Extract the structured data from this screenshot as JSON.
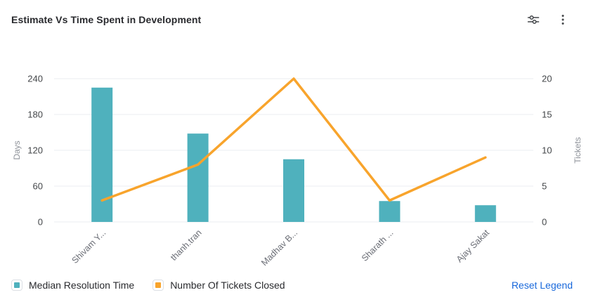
{
  "header": {
    "title": "Estimate Vs Time Spent in Development",
    "icons": [
      {
        "name": "filter-sliders-icon"
      },
      {
        "name": "kebab-menu-icon"
      }
    ]
  },
  "chart_data": {
    "type": "combo-bar-line",
    "categories": [
      "Shivam Y...",
      "thanh.tran",
      "Madhav B...",
      "Sharath ...",
      "Ajay Sakat"
    ],
    "series": [
      {
        "name": "Median Resolution Time",
        "type": "bar",
        "axis": "left",
        "color": "#4FB1BD",
        "values": [
          225,
          148,
          105,
          35,
          28
        ]
      },
      {
        "name": "Number Of Tickets Closed",
        "type": "line",
        "axis": "right",
        "color": "#F8A42C",
        "values": [
          3,
          8,
          20,
          3,
          9
        ]
      }
    ],
    "left_axis": {
      "label": "Days",
      "ticks": [
        0,
        60,
        120,
        180,
        240
      ],
      "min": 0,
      "max": 240
    },
    "right_axis": {
      "label": "Tickets",
      "ticks": [
        0,
        5,
        10,
        15,
        20
      ],
      "min": 0,
      "max": 20
    },
    "grid": true,
    "legend_position": "bottom",
    "colors": {
      "gridline": "#ebecf0",
      "tick_text": "#44474a",
      "axis_name_text": "#8e9299",
      "category_text": "#6b6e76"
    }
  },
  "legend": {
    "items": [
      {
        "label": "Median Resolution Time",
        "color": "#4FB1BD"
      },
      {
        "label": "Number Of Tickets Closed",
        "color": "#F8A42C"
      }
    ],
    "reset_label": "Reset Legend",
    "reset_color": "#1868DB"
  }
}
